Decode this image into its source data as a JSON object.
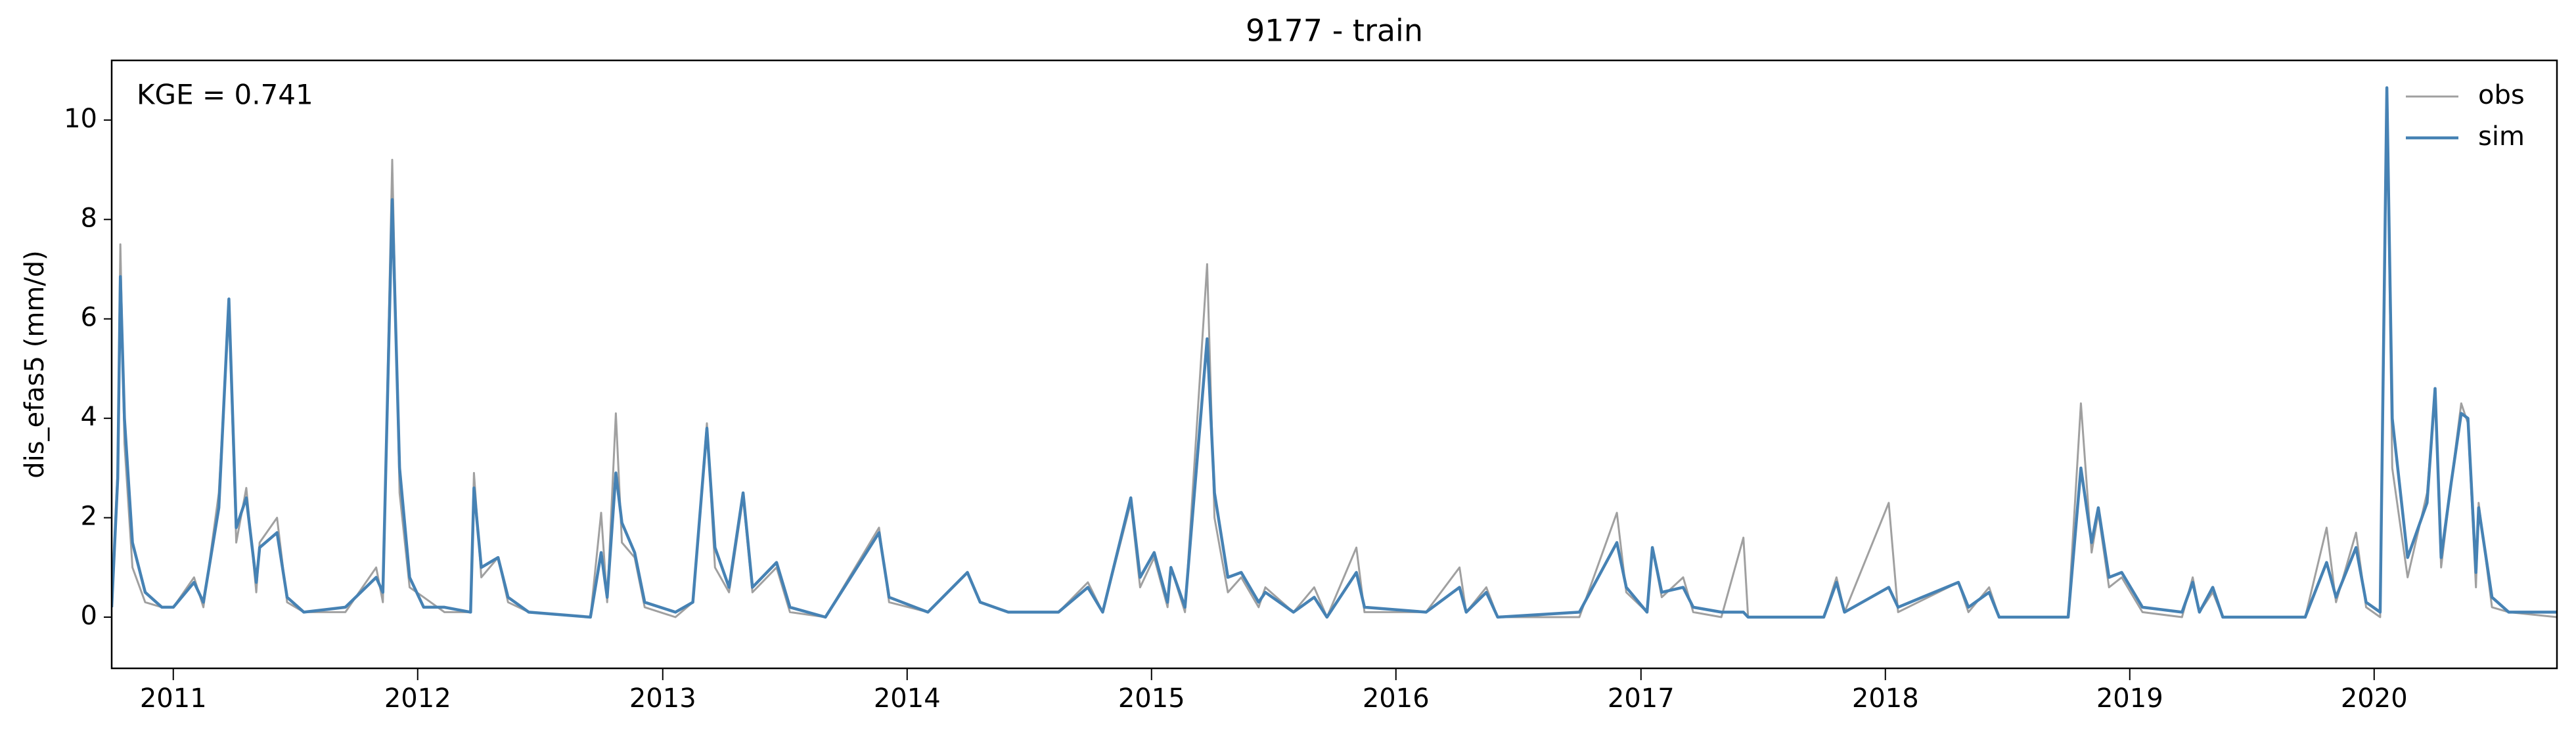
{
  "chart_data": {
    "type": "line",
    "title": "9177 - train",
    "ylabel": "dis_efas5 (mm/d)",
    "annotation": "KGE = 0.741",
    "legend": "upper right",
    "xlim": [
      "2010-10-01",
      "2020-09-30"
    ],
    "ylim": [
      -1.03,
      11.2
    ],
    "yticks": [
      0,
      2,
      4,
      6,
      8,
      10
    ],
    "xticks": [
      {
        "value": "2011-01-01",
        "label": "2011"
      },
      {
        "value": "2012-01-01",
        "label": "2012"
      },
      {
        "value": "2013-01-01",
        "label": "2013"
      },
      {
        "value": "2014-01-01",
        "label": "2014"
      },
      {
        "value": "2015-01-01",
        "label": "2015"
      },
      {
        "value": "2016-01-01",
        "label": "2016"
      },
      {
        "value": "2017-01-01",
        "label": "2017"
      },
      {
        "value": "2018-01-01",
        "label": "2018"
      },
      {
        "value": "2019-01-01",
        "label": "2019"
      },
      {
        "value": "2020-01-01",
        "label": "2020"
      }
    ],
    "x": [
      "2010-10-01",
      "2010-10-10",
      "2010-10-14",
      "2010-10-20",
      "2010-11-01",
      "2010-11-20",
      "2010-12-15",
      "2011-01-01",
      "2011-02-01",
      "2011-02-15",
      "2011-03-10",
      "2011-03-25",
      "2011-04-05",
      "2011-04-20",
      "2011-05-05",
      "2011-05-10",
      "2011-06-05",
      "2011-06-20",
      "2011-07-15",
      "2011-09-15",
      "2011-10-31",
      "2011-11-10",
      "2011-11-24",
      "2011-12-05",
      "2011-12-20",
      "2012-01-10",
      "2012-02-10",
      "2012-03-20",
      "2012-03-25",
      "2012-04-05",
      "2012-04-30",
      "2012-05-15",
      "2012-06-15",
      "2012-09-15",
      "2012-10-01",
      "2012-10-10",
      "2012-10-23",
      "2012-11-01",
      "2012-11-20",
      "2012-12-05",
      "2013-01-20",
      "2013-02-15",
      "2013-03-08",
      "2013-03-20",
      "2013-04-10",
      "2013-05-01",
      "2013-05-15",
      "2013-06-20",
      "2013-07-10",
      "2013-09-01",
      "2013-11-20",
      "2013-12-05",
      "2014-02-01",
      "2014-04-01",
      "2014-04-20",
      "2014-06-01",
      "2014-08-15",
      "2014-09-28",
      "2014-10-20",
      "2014-12-01",
      "2014-12-15",
      "2015-01-05",
      "2015-01-25",
      "2015-01-30",
      "2015-02-20",
      "2015-03-25",
      "2015-04-05",
      "2015-04-25",
      "2015-05-15",
      "2015-06-10",
      "2015-06-20",
      "2015-08-01",
      "2015-09-01",
      "2015-09-20",
      "2015-11-03",
      "2015-11-15",
      "2016-02-15",
      "2016-04-05",
      "2016-04-15",
      "2016-05-15",
      "2016-06-01",
      "2016-10-01",
      "2016-11-26",
      "2016-12-10",
      "2017-01-10",
      "2017-01-18",
      "2017-02-01",
      "2017-03-05",
      "2017-03-20",
      "2017-05-01",
      "2017-06-03",
      "2017-06-10",
      "2017-10-01",
      "2017-10-20",
      "2017-11-01",
      "2018-01-06",
      "2018-01-20",
      "2018-04-20",
      "2018-05-05",
      "2018-06-05",
      "2018-06-20",
      "2018-10-01",
      "2018-10-20",
      "2018-11-05",
      "2018-11-15",
      "2018-12-01",
      "2018-12-20",
      "2019-01-20",
      "2019-03-20",
      "2019-04-05",
      "2019-04-15",
      "2019-05-05",
      "2019-05-20",
      "2019-09-20",
      "2019-10-22",
      "2019-11-05",
      "2019-12-05",
      "2019-12-20",
      "2020-01-10",
      "2020-01-20",
      "2020-01-28",
      "2020-02-20",
      "2020-03-20",
      "2020-04-01",
      "2020-04-10",
      "2020-04-25",
      "2020-05-10",
      "2020-05-20",
      "2020-06-01",
      "2020-06-05",
      "2020-06-25",
      "2020-07-20",
      "2020-09-30"
    ],
    "series": [
      {
        "name": "obs",
        "color": "#a0a0a0",
        "values": [
          0.3,
          3.0,
          7.5,
          3.5,
          1.0,
          0.3,
          0.2,
          0.2,
          0.8,
          0.2,
          2.5,
          6.2,
          1.5,
          2.6,
          0.5,
          1.5,
          2.0,
          0.3,
          0.1,
          0.1,
          1.0,
          0.3,
          9.2,
          2.5,
          0.6,
          0.4,
          0.1,
          0.1,
          2.9,
          0.8,
          1.2,
          0.3,
          0.1,
          0.0,
          2.1,
          0.3,
          4.1,
          1.5,
          1.2,
          0.2,
          0.0,
          0.3,
          3.9,
          1.0,
          0.5,
          2.4,
          0.5,
          1.0,
          0.1,
          0.0,
          1.8,
          0.3,
          0.1,
          0.9,
          0.3,
          0.1,
          0.1,
          0.7,
          0.1,
          2.3,
          0.6,
          1.2,
          0.2,
          1.0,
          0.1,
          7.1,
          2.0,
          0.5,
          0.8,
          0.2,
          0.6,
          0.1,
          0.6,
          0.0,
          1.4,
          0.1,
          0.1,
          1.0,
          0.1,
          0.6,
          0.0,
          0.0,
          2.1,
          0.5,
          0.1,
          1.4,
          0.4,
          0.8,
          0.1,
          0.0,
          1.6,
          0.0,
          0.0,
          0.8,
          0.1,
          2.3,
          0.1,
          0.7,
          0.1,
          0.6,
          0.0,
          0.0,
          4.3,
          1.3,
          2.1,
          0.6,
          0.8,
          0.1,
          0.0,
          0.8,
          0.1,
          0.5,
          0.0,
          0.0,
          1.8,
          0.3,
          1.7,
          0.2,
          0.0,
          10.6,
          3.0,
          0.8,
          2.5,
          4.5,
          1.0,
          2.7,
          4.3,
          3.9,
          0.6,
          2.3,
          0.2,
          0.1,
          0.0
        ]
      },
      {
        "name": "sim",
        "color": "#4682b4",
        "values": [
          0.2,
          2.8,
          6.85,
          4.0,
          1.5,
          0.5,
          0.2,
          0.2,
          0.7,
          0.3,
          2.2,
          6.4,
          1.8,
          2.4,
          0.7,
          1.4,
          1.7,
          0.4,
          0.1,
          0.2,
          0.8,
          0.5,
          8.4,
          3.0,
          0.8,
          0.2,
          0.2,
          0.1,
          2.6,
          1.0,
          1.2,
          0.4,
          0.1,
          0.0,
          1.3,
          0.4,
          2.9,
          1.9,
          1.3,
          0.3,
          0.1,
          0.3,
          3.8,
          1.4,
          0.6,
          2.5,
          0.6,
          1.1,
          0.2,
          0.0,
          1.7,
          0.4,
          0.1,
          0.9,
          0.3,
          0.1,
          0.1,
          0.6,
          0.1,
          2.4,
          0.8,
          1.3,
          0.3,
          1.0,
          0.2,
          5.6,
          2.5,
          0.8,
          0.9,
          0.3,
          0.5,
          0.1,
          0.4,
          0.0,
          0.9,
          0.2,
          0.1,
          0.6,
          0.1,
          0.5,
          0.0,
          0.1,
          1.5,
          0.6,
          0.1,
          1.4,
          0.5,
          0.6,
          0.2,
          0.1,
          0.1,
          0.0,
          0.0,
          0.7,
          0.1,
          0.6,
          0.2,
          0.7,
          0.2,
          0.5,
          0.0,
          0.0,
          3.0,
          1.5,
          2.2,
          0.8,
          0.9,
          0.2,
          0.1,
          0.7,
          0.1,
          0.6,
          0.0,
          0.0,
          1.1,
          0.4,
          1.4,
          0.3,
          0.1,
          10.65,
          4.0,
          1.2,
          2.3,
          4.6,
          1.2,
          2.7,
          4.1,
          4.0,
          0.9,
          2.2,
          0.4,
          0.1,
          0.1
        ]
      }
    ]
  }
}
